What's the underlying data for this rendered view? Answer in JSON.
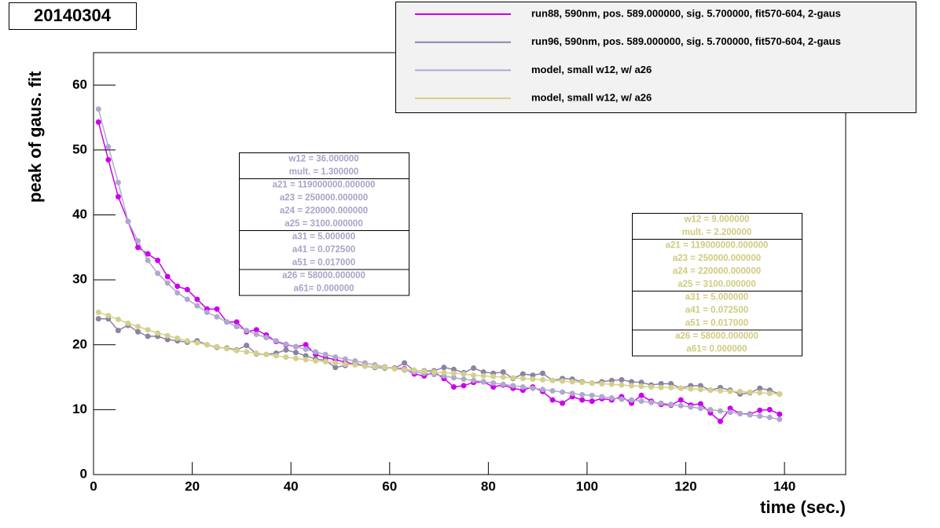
{
  "chart_data": {
    "type": "line",
    "title": "20140304",
    "x_label": "time (sec.)",
    "y_label": "peak of gaus. fit",
    "xlim": [
      0,
      152.4
    ],
    "ylim": [
      0,
      65
    ],
    "xticks": [
      0,
      20,
      40,
      60,
      80,
      100,
      120,
      140
    ],
    "yticks": [
      0,
      10,
      20,
      30,
      40,
      50,
      60
    ],
    "x": [
      1,
      3,
      5,
      7,
      9,
      11,
      13,
      15,
      17,
      19,
      21,
      23,
      25,
      27,
      29,
      31,
      33,
      35,
      37,
      39,
      41,
      43,
      45,
      47,
      49,
      51,
      53,
      55,
      57,
      59,
      61,
      63,
      65,
      67,
      69,
      71,
      73,
      75,
      77,
      79,
      81,
      83,
      85,
      87,
      89,
      91,
      93,
      95,
      97,
      99,
      101,
      103,
      105,
      107,
      109,
      111,
      113,
      115,
      117,
      119,
      121,
      123,
      125,
      127,
      129,
      131,
      133,
      135,
      137,
      139
    ],
    "series": [
      {
        "name": "run88, 590nm, pos. 589.000000, sig. 5.700000, fit570-604, 2-gaus",
        "color": "#cc00ee",
        "values": [
          54.3,
          48.5,
          42.8,
          39,
          35,
          34,
          33,
          30.5,
          29,
          28.5,
          27,
          25.5,
          25.5,
          23.5,
          23.5,
          22,
          22.3,
          21.5,
          20.5,
          20,
          19.7,
          20,
          18.5,
          18,
          17.7,
          17.3,
          17,
          16.8,
          16.5,
          16.5,
          16.4,
          16.3,
          15.5,
          15.2,
          15.8,
          14.8,
          13.5,
          13.7,
          14.2,
          14.3,
          13.5,
          13.8,
          13.3,
          13.0,
          13.5,
          12.8,
          11.5,
          11.0,
          12.0,
          11.5,
          11.3,
          11.7,
          11.5,
          12.0,
          11.0,
          12.2,
          11.3,
          10.8,
          10.7,
          11.5,
          10.7,
          10.9,
          9.5,
          8.2,
          10.2,
          9.4,
          9.3,
          9.9,
          10.0,
          9.3
        ]
      },
      {
        "name": "run96, 590nm, pos. 589.000000, sig. 5.700000, fit570-604, 2-gaus",
        "color": "#8a83a3",
        "values": [
          24,
          24,
          22.2,
          23,
          22,
          21.3,
          21.3,
          20.8,
          20.6,
          20.4,
          20.6,
          20.0,
          19.6,
          19.5,
          19.2,
          19.9,
          18.6,
          18.5,
          18.7,
          19.2,
          18.8,
          18.3,
          17.8,
          17.6,
          16.5,
          16.8,
          17.2,
          16.7,
          16.5,
          16.4,
          16.4,
          17.2,
          16.0,
          16.0,
          16.0,
          16.5,
          16.2,
          15.7,
          16.4,
          15.8,
          15.6,
          15.8,
          14.8,
          15.5,
          15.3,
          15.6,
          14.5,
          14.8,
          14.7,
          14.3,
          14.1,
          14.3,
          14.5,
          14.6,
          14.3,
          14.2,
          13.8,
          14.0,
          14.0,
          13.3,
          13.7,
          13.7,
          13.0,
          13.4,
          13.0,
          12.4,
          12.6,
          13.3,
          13.0,
          12.4
        ]
      },
      {
        "name": "model, small w12, w/ a26",
        "color": "#b0a8cc",
        "values": [
          56.3,
          50.5,
          45,
          39,
          36,
          33,
          31,
          29.5,
          28,
          27,
          26,
          25,
          24.3,
          23.5,
          22.8,
          22.2,
          21.6,
          21.1,
          20.6,
          20.1,
          19.7,
          19.3,
          18.9,
          18.5,
          18.1,
          17.8,
          17.5,
          17.2,
          16.9,
          16.6,
          16.3,
          16.1,
          15.8,
          15.6,
          15.4,
          15.2,
          14.9,
          14.7,
          14.5,
          14.3,
          14.1,
          13.9,
          13.7,
          13.5,
          13.3,
          13.1,
          12.9,
          12.7,
          12.5,
          12.3,
          12.2,
          12.0,
          11.8,
          11.6,
          11.5,
          11.3,
          11.1,
          11.0,
          10.8,
          10.6,
          10.4,
          10.2,
          10.0,
          9.8,
          9.6,
          9.4,
          9.2,
          9.0,
          8.8,
          8.5
        ]
      },
      {
        "name": "model, small w12, w/ a26",
        "color": "#d4d08a",
        "values": [
          25,
          24.5,
          23.9,
          23.3,
          22.8,
          22.3,
          21.8,
          21.4,
          21.0,
          20.6,
          20.3,
          20.0,
          19.7,
          19.4,
          19.1,
          18.9,
          18.7,
          18.5,
          18.3,
          18.1,
          17.9,
          17.7,
          17.5,
          17.4,
          17.2,
          17.0,
          16.9,
          16.7,
          16.6,
          16.5,
          16.3,
          16.2,
          16.1,
          15.9,
          15.8,
          15.7,
          15.6,
          15.5,
          15.3,
          15.2,
          15.1,
          15.0,
          14.9,
          14.8,
          14.7,
          14.6,
          14.5,
          14.4,
          14.3,
          14.2,
          14.1,
          14.0,
          13.9,
          13.8,
          13.7,
          13.6,
          13.5,
          13.4,
          13.4,
          13.3,
          13.2,
          13.1,
          13.0,
          12.9,
          12.8,
          12.8,
          12.7,
          12.6,
          12.5,
          12.4
        ]
      }
    ],
    "param_boxes": [
      {
        "color": "#aaa2c8",
        "groups": [
          [
            "w12 = 36.000000",
            "mult. = 1.300000"
          ],
          [
            "a21 = 119000000.000000",
            "a23 = 250000.000000",
            "a24 = 220000.000000",
            "a25 = 3100.000000"
          ],
          [
            "a31 = 5.000000",
            "a41 = 0.072500",
            "a51 = 0.017000"
          ],
          [
            "a26 = 58000.000000",
            "a61= 0.000000"
          ]
        ]
      },
      {
        "color": "#cfcb80",
        "groups": [
          [
            "w12 = 9.000000",
            "mult. = 2.200000"
          ],
          [
            "a21 = 119000000.000000",
            "a23 = 250000.000000",
            "a24 = 220000.000000",
            "a25 = 3100.000000"
          ],
          [
            "a31 = 5.000000",
            "a41 = 0.072500",
            "a51 = 0.017000"
          ],
          [
            "a26 = 58000.000000",
            "a61= 0.000000"
          ]
        ]
      }
    ]
  }
}
